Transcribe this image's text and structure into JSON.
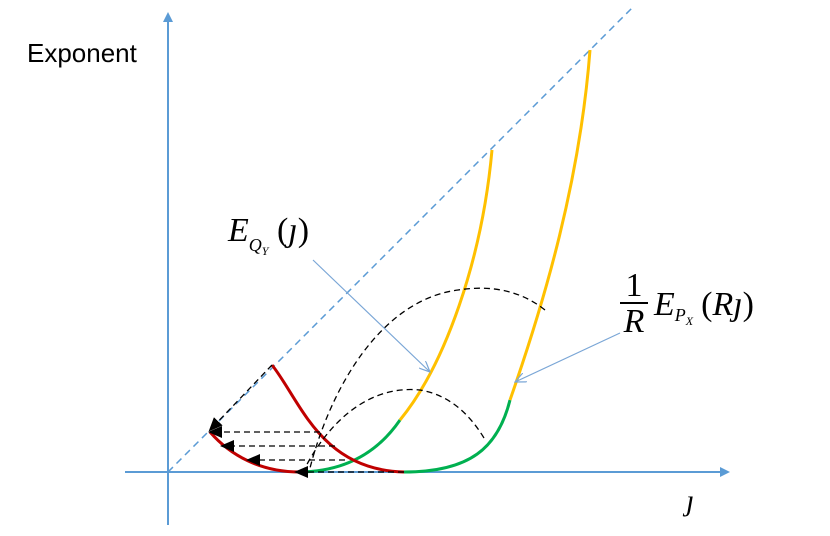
{
  "axes": {
    "y_label": "Exponent",
    "x_label": "ȷ"
  },
  "labels": {
    "eq": {
      "base": "E",
      "sub": "Q",
      "subsub": "Y",
      "open": "(",
      "arg": "ȷ",
      "close": ")"
    },
    "ep": {
      "num": "1",
      "den": "R",
      "base": "E",
      "sub": "P",
      "subsub": "X",
      "open": "(",
      "arg": "Rȷ",
      "close": ")"
    }
  },
  "colors": {
    "axis": "#5b9bd5",
    "diagonal": "#5b9bd5",
    "yellow_curve": "#ffc000",
    "green_curve": "#00b050",
    "red_curve": "#c00000",
    "dashed_arrow": "#000000",
    "pointer": "#7aa6d6"
  }
}
